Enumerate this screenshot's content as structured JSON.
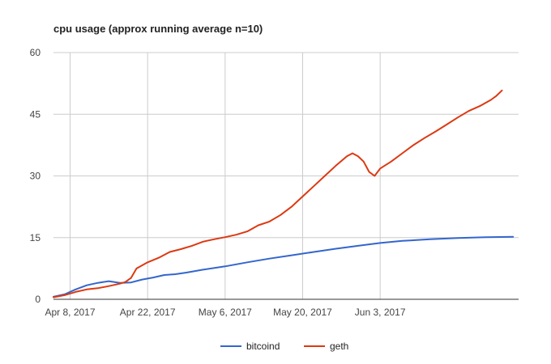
{
  "chart_data": {
    "type": "line",
    "title": "cpu usage (approx running average n=10)",
    "xlabel": "",
    "ylabel": "",
    "x_type": "date",
    "xlim": [
      "2017-04-05",
      "2017-06-28"
    ],
    "ylim": [
      0,
      60
    ],
    "y_ticks": [
      0,
      15,
      30,
      45,
      60
    ],
    "x_ticks": [
      "2017-04-08",
      "2017-04-22",
      "2017-05-06",
      "2017-05-20",
      "2017-06-03"
    ],
    "x_tick_labels": [
      "Apr 8, 2017",
      "Apr 22, 2017",
      "May 6, 2017",
      "May 20, 2017",
      "Jun 3, 2017"
    ],
    "grid": true,
    "legend_position": "bottom",
    "series": [
      {
        "name": "bitcoind",
        "color": "#3366cc",
        "points": [
          [
            "2017-04-05",
            0.6
          ],
          [
            "2017-04-07",
            1.2
          ],
          [
            "2017-04-09",
            2.4
          ],
          [
            "2017-04-11",
            3.4
          ],
          [
            "2017-04-13",
            4.0
          ],
          [
            "2017-04-15",
            4.4
          ],
          [
            "2017-04-17",
            4.0
          ],
          [
            "2017-04-19",
            4.1
          ],
          [
            "2017-04-21",
            4.8
          ],
          [
            "2017-04-23",
            5.3
          ],
          [
            "2017-04-25",
            5.9
          ],
          [
            "2017-04-27",
            6.1
          ],
          [
            "2017-04-29",
            6.5
          ],
          [
            "2017-05-02",
            7.2
          ],
          [
            "2017-05-06",
            8.0
          ],
          [
            "2017-05-10",
            9.0
          ],
          [
            "2017-05-14",
            9.9
          ],
          [
            "2017-05-18",
            10.7
          ],
          [
            "2017-05-22",
            11.5
          ],
          [
            "2017-05-26",
            12.3
          ],
          [
            "2017-05-30",
            13.0
          ],
          [
            "2017-06-03",
            13.7
          ],
          [
            "2017-06-07",
            14.2
          ],
          [
            "2017-06-12",
            14.6
          ],
          [
            "2017-06-17",
            14.9
          ],
          [
            "2017-06-22",
            15.1
          ],
          [
            "2017-06-27",
            15.2
          ]
        ]
      },
      {
        "name": "geth",
        "color": "#dc3912",
        "points": [
          [
            "2017-04-05",
            0.5
          ],
          [
            "2017-04-07",
            1.0
          ],
          [
            "2017-04-09",
            1.8
          ],
          [
            "2017-04-11",
            2.4
          ],
          [
            "2017-04-13",
            2.7
          ],
          [
            "2017-04-15",
            3.2
          ],
          [
            "2017-04-17",
            3.8
          ],
          [
            "2017-04-18",
            4.2
          ],
          [
            "2017-04-19",
            5.2
          ],
          [
            "2017-04-20",
            7.5
          ],
          [
            "2017-04-22",
            9.0
          ],
          [
            "2017-04-24",
            10.1
          ],
          [
            "2017-04-26",
            11.5
          ],
          [
            "2017-04-28",
            12.2
          ],
          [
            "2017-04-30",
            13.0
          ],
          [
            "2017-05-02",
            14.0
          ],
          [
            "2017-05-04",
            14.6
          ],
          [
            "2017-05-06",
            15.1
          ],
          [
            "2017-05-08",
            15.7
          ],
          [
            "2017-05-10",
            16.5
          ],
          [
            "2017-05-12",
            18.0
          ],
          [
            "2017-05-14",
            18.9
          ],
          [
            "2017-05-16",
            20.5
          ],
          [
            "2017-05-18",
            22.5
          ],
          [
            "2017-05-20",
            25.0
          ],
          [
            "2017-05-22",
            27.5
          ],
          [
            "2017-05-24",
            30.0
          ],
          [
            "2017-05-26",
            32.5
          ],
          [
            "2017-05-28",
            34.8
          ],
          [
            "2017-05-29",
            35.5
          ],
          [
            "2017-05-30",
            34.8
          ],
          [
            "2017-05-31",
            33.5
          ],
          [
            "2017-06-01",
            31.0
          ],
          [
            "2017-06-02",
            30.0
          ],
          [
            "2017-06-03",
            31.8
          ],
          [
            "2017-06-05",
            33.5
          ],
          [
            "2017-06-07",
            35.5
          ],
          [
            "2017-06-09",
            37.5
          ],
          [
            "2017-06-11",
            39.2
          ],
          [
            "2017-06-13",
            40.8
          ],
          [
            "2017-06-15",
            42.5
          ],
          [
            "2017-06-17",
            44.2
          ],
          [
            "2017-06-19",
            45.8
          ],
          [
            "2017-06-21",
            47.0
          ],
          [
            "2017-06-23",
            48.5
          ],
          [
            "2017-06-24",
            49.5
          ],
          [
            "2017-06-25",
            50.8
          ]
        ]
      }
    ]
  }
}
